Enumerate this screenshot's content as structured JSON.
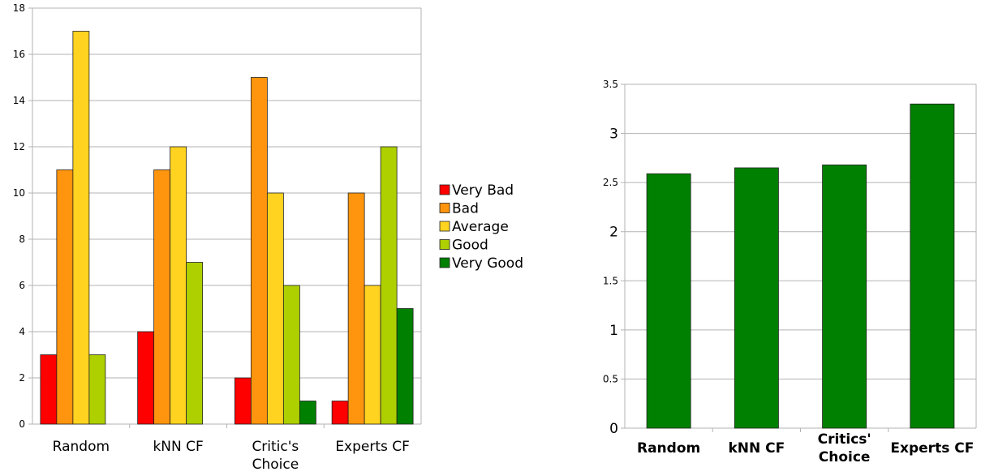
{
  "chart_data": [
    {
      "type": "bar",
      "categories": [
        "Random",
        "kNN CF",
        "Critic's\nChoice",
        "Experts CF"
      ],
      "series": [
        {
          "name": "Very Bad",
          "color": "#ff0000",
          "values": [
            3,
            4,
            2,
            1
          ]
        },
        {
          "name": "Bad",
          "color": "#ff950e",
          "values": [
            11,
            11,
            15,
            10
          ]
        },
        {
          "name": "Average",
          "color": "#ffd320",
          "values": [
            17,
            12,
            10,
            6
          ]
        },
        {
          "name": "Good",
          "color": "#aecf00",
          "values": [
            3,
            7,
            6,
            12
          ]
        },
        {
          "name": "Very Good",
          "color": "#008000",
          "values": [
            0,
            0,
            1,
            5
          ]
        }
      ],
      "yticks": [
        "0",
        "2",
        "4",
        "6",
        "8",
        "10",
        "12",
        "14",
        "16",
        "18"
      ],
      "ylim": [
        0,
        18
      ],
      "grid": true,
      "legend_position": "right",
      "title": "",
      "xlabel": "",
      "ylabel": ""
    },
    {
      "type": "bar",
      "categories": [
        "Random",
        "kNN CF",
        "Critics'\nChoice",
        "Experts CF"
      ],
      "series": [
        {
          "color": "#008000",
          "values": [
            2.59,
            2.65,
            2.68,
            3.3
          ]
        }
      ],
      "yticks": [
        "0",
        "0.5",
        "1",
        "1.5",
        "2",
        "2.5",
        "3",
        "3.5"
      ],
      "ylim": [
        0,
        3.5
      ],
      "grid": true,
      "title": "",
      "xlabel": "",
      "ylabel": ""
    }
  ]
}
